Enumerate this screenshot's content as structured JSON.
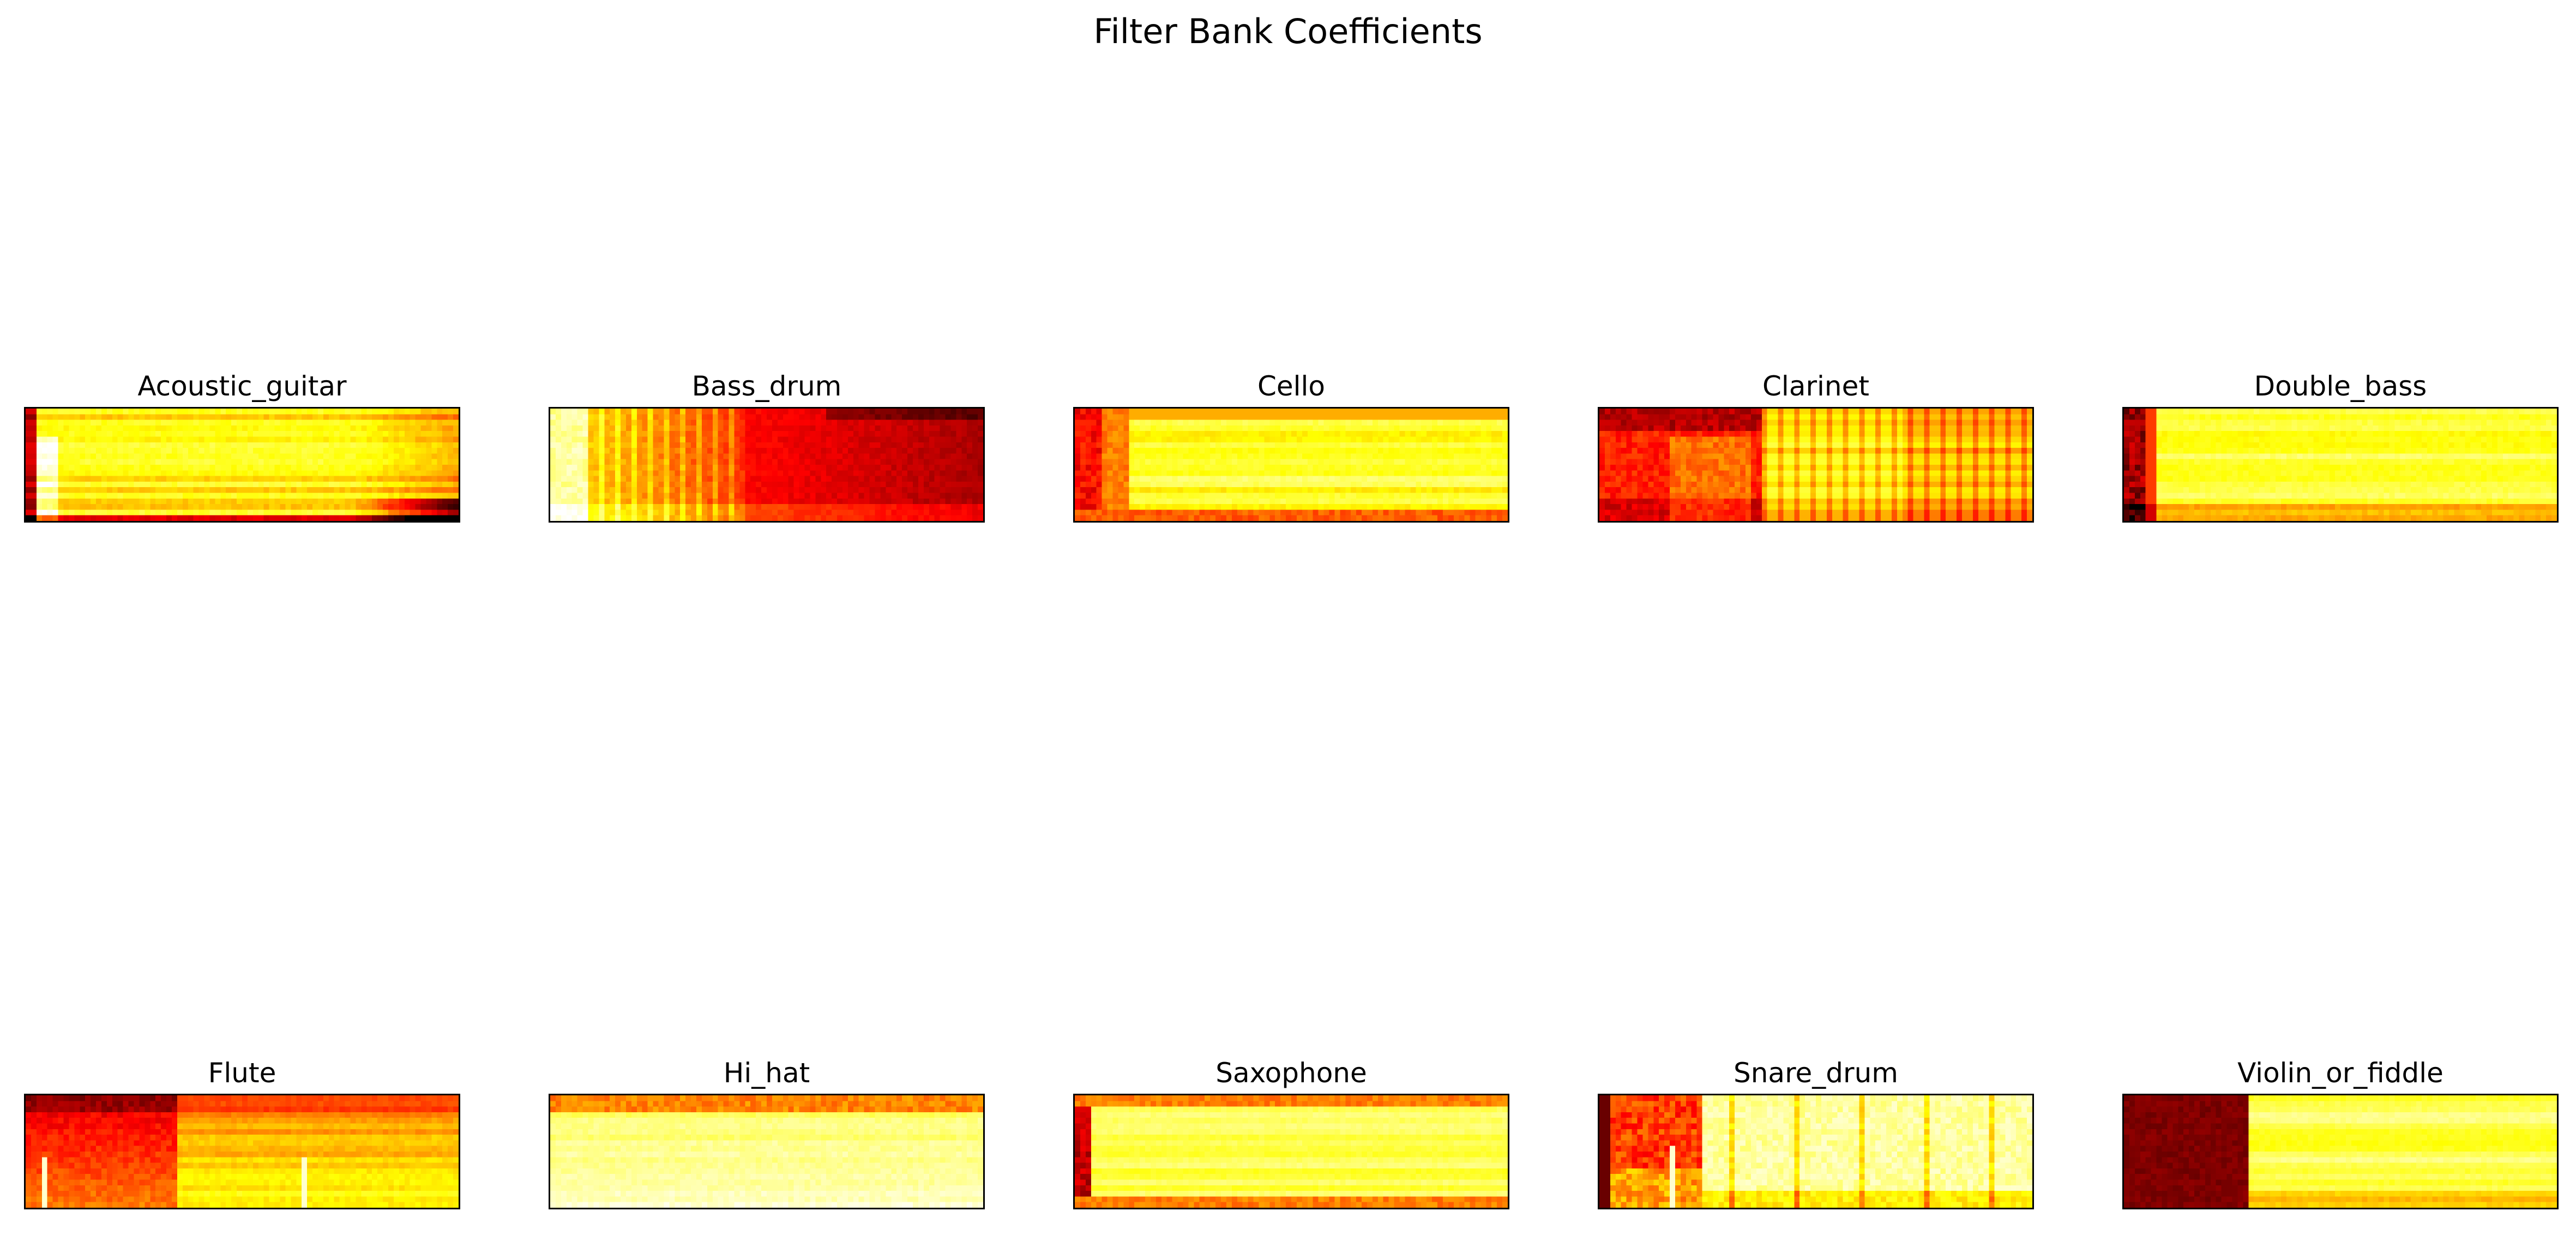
{
  "chart_data": {
    "type": "heatmap",
    "title": "Filter Bank Coefficients",
    "colormap": "hot",
    "axes_ticks": "hidden",
    "panels": [
      {
        "name": "Acoustic_guitar",
        "row": 0,
        "col": 0,
        "pattern": "guitar"
      },
      {
        "name": "Bass_drum",
        "row": 0,
        "col": 1,
        "pattern": "bassdrum"
      },
      {
        "name": "Cello",
        "row": 0,
        "col": 2,
        "pattern": "cello"
      },
      {
        "name": "Clarinet",
        "row": 0,
        "col": 3,
        "pattern": "clarinet"
      },
      {
        "name": "Double_bass",
        "row": 0,
        "col": 4,
        "pattern": "doublebass"
      },
      {
        "name": "Flute",
        "row": 1,
        "col": 0,
        "pattern": "flute"
      },
      {
        "name": "Hi_hat",
        "row": 1,
        "col": 1,
        "pattern": "hihat"
      },
      {
        "name": "Saxophone",
        "row": 1,
        "col": 2,
        "pattern": "sax"
      },
      {
        "name": "Snare_drum",
        "row": 1,
        "col": 3,
        "pattern": "snare"
      },
      {
        "name": "Violin_or_fiddle",
        "row": 1,
        "col": 4,
        "pattern": "violin"
      }
    ]
  }
}
